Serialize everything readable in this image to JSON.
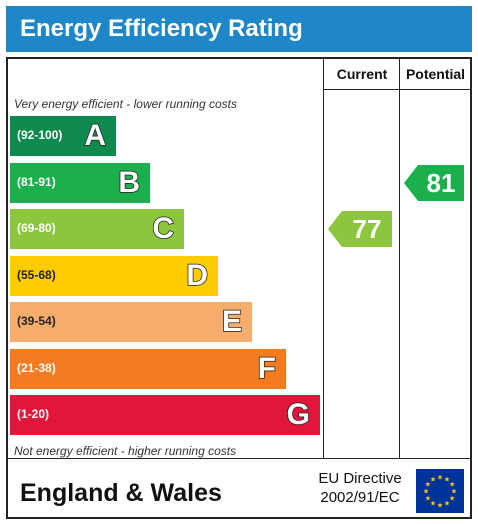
{
  "header": {
    "title": "Energy Efficiency Rating"
  },
  "columns": {
    "current": "Current",
    "potential": "Potential"
  },
  "captions": {
    "top": "Very energy efficient - lower running costs",
    "bottom": "Not energy efficient - higher running costs"
  },
  "bands": [
    {
      "range": "(92-100)",
      "letter": "A",
      "color": "#0f8a4f"
    },
    {
      "range": "(81-91)",
      "letter": "B",
      "color": "#1bb04b"
    },
    {
      "range": "(69-80)",
      "letter": "C",
      "color": "#8cc63e"
    },
    {
      "range": "(55-68)",
      "letter": "D",
      "color": "#ffcc00"
    },
    {
      "range": "(39-54)",
      "letter": "E",
      "color": "#f7ad6b"
    },
    {
      "range": "(21-38)",
      "letter": "F",
      "color": "#f47b20"
    },
    {
      "range": "(1-20)",
      "letter": "G",
      "color": "#e2163b"
    }
  ],
  "ratings": {
    "current": {
      "value": "77",
      "band": "C",
      "color": "#8cc63e"
    },
    "potential": {
      "value": "81",
      "band": "B",
      "color": "#1bb04b"
    }
  },
  "footer": {
    "region": "England & Wales",
    "directive_line1": "EU Directive",
    "directive_line2": "2002/91/EC",
    "flag_icon": "eu-flag-icon"
  }
}
